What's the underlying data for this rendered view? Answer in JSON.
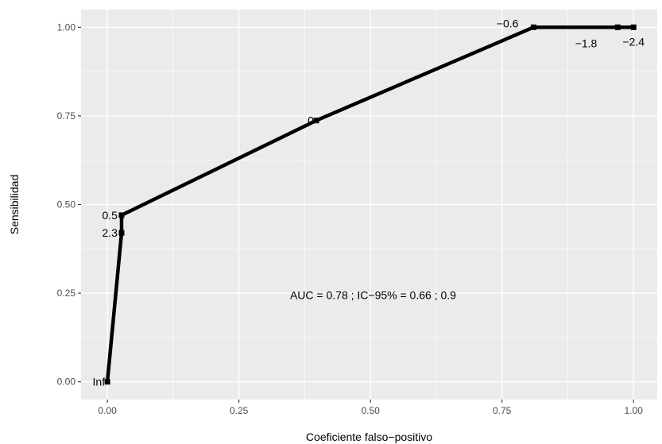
{
  "chart_data": {
    "type": "line",
    "title": "",
    "xlabel": "Coeficiente falso−positivo",
    "ylabel": "Sensibilidad",
    "xlim": [
      -0.05,
      1.045
    ],
    "ylim": [
      -0.05,
      1.05
    ],
    "grid": true,
    "xticks": [
      0.0,
      0.25,
      0.5,
      0.75,
      1.0
    ],
    "xtick_labels": [
      "0.00",
      "0.25",
      "0.50",
      "0.75",
      "1.00"
    ],
    "yticks": [
      0.0,
      0.25,
      0.5,
      0.75,
      1.0
    ],
    "ytick_labels": [
      "0.00",
      "0.25",
      "0.50",
      "0.75",
      "1.00"
    ],
    "series": [
      {
        "points": [
          {
            "x": 0.0,
            "y": 0.0,
            "label": "Inf"
          },
          {
            "x": 0.027,
            "y": 0.42,
            "label": "2.3"
          },
          {
            "x": 0.027,
            "y": 0.47,
            "label": "0.5"
          },
          {
            "x": 0.397,
            "y": 0.737,
            "label": "0"
          },
          {
            "x": 0.81,
            "y": 1.0,
            "label": "−0.6"
          },
          {
            "x": 0.97,
            "y": 1.0,
            "label": "−1.8"
          },
          {
            "x": 1.0,
            "y": 1.0,
            "label": "−2.4"
          }
        ]
      }
    ],
    "annotation": {
      "text": "AUC =  0.78 ;  IC−95% =  0.66 ; 0.9",
      "x": 0.505,
      "y": 0.245
    },
    "colors": {
      "panel": "#ebebeb",
      "grid_major": "#ffffff",
      "line": "#000000"
    }
  }
}
